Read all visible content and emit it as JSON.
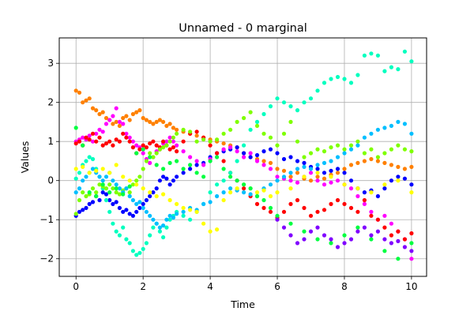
{
  "chart_data": {
    "type": "scatter",
    "title": "Unnamed - 0 marginal",
    "xlabel": "Time",
    "ylabel": "Values",
    "xlim": [
      -0.5,
      10.45
    ],
    "ylim": [
      -2.45,
      3.65
    ],
    "xticks": [
      0,
      2,
      4,
      6,
      8,
      10
    ],
    "yticks": [
      -2,
      -1,
      0,
      1,
      2,
      3
    ],
    "xtick_labels": [
      "0",
      "2",
      "4",
      "6",
      "8",
      "10"
    ],
    "ytick_labels": [
      "−2",
      "−1",
      "0",
      "1",
      "2",
      "3"
    ],
    "grid": true,
    "legend": "none",
    "series": [
      {
        "color": "#ff8000",
        "x": [
          0.0,
          0.1,
          0.2,
          0.3,
          0.4,
          0.5,
          0.6,
          0.7,
          0.8,
          0.9,
          1.0,
          1.1,
          1.2,
          1.3,
          1.4,
          1.5,
          1.6,
          1.7,
          1.8,
          1.9,
          2.0,
          2.1,
          2.2,
          2.3,
          2.4,
          2.5,
          2.6,
          2.7,
          2.8,
          2.9,
          3.0,
          3.2,
          3.4,
          3.6,
          3.8,
          4.0,
          4.2,
          4.4,
          4.6,
          4.8,
          5.0,
          5.2,
          5.4,
          5.6,
          5.8,
          6.0,
          6.2,
          6.4,
          6.6,
          6.8,
          7.0,
          7.2,
          7.4,
          7.6,
          7.8,
          8.0,
          8.2,
          8.4,
          8.6,
          8.8,
          9.0,
          9.2,
          9.4,
          9.6,
          9.8,
          10.0
        ],
        "y": [
          2.3,
          2.25,
          2.0,
          2.05,
          2.1,
          1.85,
          1.8,
          1.7,
          1.75,
          1.6,
          1.55,
          1.45,
          1.5,
          1.4,
          1.6,
          1.65,
          1.55,
          1.7,
          1.75,
          1.8,
          1.6,
          1.55,
          1.5,
          1.45,
          1.5,
          1.55,
          1.5,
          1.4,
          1.45,
          1.35,
          1.3,
          1.25,
          1.2,
          1.15,
          1.1,
          1.05,
          1.0,
          0.95,
          0.9,
          0.85,
          0.7,
          0.6,
          0.55,
          0.5,
          0.45,
          0.3,
          0.25,
          0.1,
          0.2,
          0.05,
          0.0,
          0.1,
          0.05,
          0.15,
          0.2,
          0.3,
          0.4,
          0.45,
          0.5,
          0.55,
          0.5,
          0.45,
          0.4,
          0.35,
          0.3,
          0.35
        ]
      },
      {
        "color": "#0000ff",
        "x": [
          0.0,
          0.1,
          0.2,
          0.3,
          0.4,
          0.5,
          0.6,
          0.7,
          0.8,
          0.9,
          1.0,
          1.1,
          1.2,
          1.3,
          1.4,
          1.5,
          1.6,
          1.7,
          1.8,
          1.9,
          2.0,
          2.1,
          2.2,
          2.3,
          2.4,
          2.5,
          2.6,
          2.7,
          2.8,
          2.9,
          3.0,
          3.2,
          3.4,
          3.6,
          3.8,
          4.0,
          4.2,
          4.4,
          4.6,
          4.8,
          5.0,
          5.2,
          5.4,
          5.6,
          5.8,
          6.0,
          6.2,
          6.4,
          6.6,
          6.8,
          7.0,
          7.2,
          7.4,
          7.6,
          7.8,
          8.0,
          8.2,
          8.4,
          8.6,
          8.8,
          9.0,
          9.2,
          9.4,
          9.6,
          9.8,
          10.0
        ],
        "y": [
          -0.9,
          -0.8,
          -0.75,
          -0.7,
          -0.6,
          -0.55,
          -0.4,
          -0.5,
          -0.3,
          -0.35,
          -0.5,
          -0.6,
          -0.55,
          -0.7,
          -0.8,
          -0.75,
          -0.85,
          -0.9,
          -0.8,
          -0.7,
          -0.6,
          -0.5,
          -0.4,
          -0.3,
          -0.2,
          0.0,
          0.1,
          0.05,
          -0.1,
          0.0,
          0.1,
          0.2,
          0.3,
          0.4,
          0.45,
          0.6,
          0.7,
          0.75,
          0.8,
          0.85,
          0.7,
          0.6,
          0.65,
          0.75,
          0.8,
          0.7,
          0.55,
          0.6,
          0.5,
          0.45,
          0.35,
          0.3,
          0.2,
          0.25,
          0.3,
          0.2,
          0.0,
          -0.2,
          -0.3,
          -0.25,
          -0.4,
          -0.2,
          0.0,
          0.1,
          0.05,
          -0.1
        ]
      },
      {
        "color": "#ff00ff",
        "x": [
          0.0,
          0.1,
          0.2,
          0.3,
          0.4,
          0.5,
          0.6,
          0.7,
          0.8,
          0.9,
          1.0,
          1.1,
          1.2,
          1.3,
          1.4,
          1.5,
          1.6,
          1.7,
          1.8,
          1.9,
          2.0,
          2.1,
          2.2,
          2.3,
          2.4,
          2.5,
          2.6,
          2.7,
          2.8,
          2.9,
          3.0,
          3.2,
          3.4,
          3.6,
          3.8,
          4.0,
          4.2,
          4.4,
          4.6,
          4.8,
          5.0,
          5.2,
          5.4,
          5.6,
          5.8,
          6.0,
          6.2,
          6.4,
          6.6,
          6.8,
          7.0,
          7.2,
          7.4,
          7.6,
          7.8,
          8.0,
          8.2,
          8.4,
          8.6,
          8.8,
          9.0,
          9.2,
          9.4,
          9.6,
          9.8,
          10.0
        ],
        "y": [
          1.0,
          1.05,
          1.1,
          1.05,
          1.15,
          1.0,
          1.2,
          1.3,
          1.25,
          1.45,
          1.55,
          1.65,
          1.85,
          1.5,
          1.45,
          1.2,
          1.1,
          1.0,
          0.9,
          0.85,
          0.7,
          0.55,
          0.45,
          0.6,
          0.75,
          0.8,
          0.95,
          1.0,
          1.1,
          1.0,
          0.9,
          0.75,
          0.6,
          0.5,
          0.4,
          0.55,
          0.7,
          0.8,
          0.85,
          0.75,
          0.6,
          0.7,
          0.5,
          0.4,
          0.3,
          0.1,
          0.05,
          0.0,
          -0.05,
          0.1,
          0.2,
          0.0,
          -0.1,
          -0.05,
          0.0,
          -0.1,
          -0.2,
          -0.4,
          -0.6,
          -0.8,
          -1.0,
          -0.9,
          -1.1,
          -1.3,
          -1.5,
          -2.0
        ]
      },
      {
        "color": "#ff0000",
        "x": [
          0.0,
          0.1,
          0.2,
          0.3,
          0.4,
          0.5,
          0.6,
          0.7,
          0.8,
          0.9,
          1.0,
          1.1,
          1.2,
          1.3,
          1.4,
          1.5,
          1.6,
          1.7,
          1.8,
          1.9,
          2.0,
          2.1,
          2.2,
          2.3,
          2.4,
          2.5,
          2.6,
          2.7,
          2.8,
          2.9,
          3.0,
          3.2,
          3.4,
          3.6,
          3.8,
          4.0,
          4.2,
          4.4,
          4.6,
          4.8,
          5.0,
          5.2,
          5.4,
          5.6,
          5.8,
          6.0,
          6.2,
          6.4,
          6.6,
          6.8,
          7.0,
          7.2,
          7.4,
          7.6,
          7.8,
          8.0,
          8.2,
          8.4,
          8.6,
          8.8,
          9.0,
          9.2,
          9.4,
          9.6,
          9.8,
          10.0
        ],
        "y": [
          0.95,
          1.0,
          0.9,
          1.1,
          1.05,
          1.2,
          1.0,
          1.1,
          0.9,
          0.95,
          1.0,
          0.9,
          1.05,
          1.0,
          1.2,
          1.1,
          1.0,
          0.85,
          0.7,
          0.8,
          0.9,
          0.85,
          0.95,
          1.0,
          0.9,
          0.85,
          1.0,
          0.9,
          0.8,
          0.85,
          0.75,
          1.0,
          1.2,
          1.25,
          1.1,
          0.9,
          0.7,
          0.5,
          0.2,
          0.0,
          -0.2,
          -0.4,
          -0.6,
          -0.7,
          -0.8,
          -0.95,
          -0.8,
          -0.6,
          -0.5,
          -0.7,
          -0.9,
          -0.8,
          -0.75,
          -0.6,
          -0.5,
          -0.6,
          -0.7,
          -0.8,
          -0.5,
          -0.9,
          -1.0,
          -1.2,
          -1.4,
          -1.3,
          -1.5,
          -1.35
        ]
      },
      {
        "color": "#00ffbf",
        "x": [
          0.0,
          0.1,
          0.2,
          0.3,
          0.4,
          0.5,
          0.6,
          0.7,
          0.8,
          0.9,
          1.0,
          1.1,
          1.2,
          1.3,
          1.4,
          1.5,
          1.6,
          1.7,
          1.8,
          1.9,
          2.0,
          2.1,
          2.2,
          2.3,
          2.4,
          2.5,
          2.6,
          2.7,
          2.8,
          2.9,
          3.0,
          3.2,
          3.4,
          3.6,
          3.8,
          4.0,
          4.2,
          4.4,
          4.6,
          4.8,
          5.0,
          5.2,
          5.4,
          5.6,
          5.8,
          6.0,
          6.2,
          6.4,
          6.6,
          6.8,
          7.0,
          7.2,
          7.4,
          7.6,
          7.8,
          8.0,
          8.2,
          8.4,
          8.6,
          8.8,
          9.0,
          9.2,
          9.4,
          9.6,
          9.8,
          10.0
        ],
        "y": [
          0.05,
          0.2,
          0.4,
          0.5,
          0.6,
          0.55,
          0.3,
          0.1,
          -0.2,
          -0.5,
          -0.8,
          -1.1,
          -1.3,
          -1.4,
          -1.2,
          -1.5,
          -1.6,
          -1.8,
          -1.9,
          -1.85,
          -1.75,
          -1.6,
          -1.4,
          -1.2,
          -1.1,
          -1.3,
          -1.45,
          -1.2,
          -1.0,
          -0.9,
          -0.8,
          -0.9,
          -1.0,
          -0.8,
          -0.6,
          -0.3,
          -0.1,
          0.0,
          0.2,
          0.5,
          0.9,
          1.3,
          1.5,
          1.7,
          1.9,
          2.1,
          2.0,
          1.9,
          1.8,
          2.0,
          2.1,
          2.3,
          2.5,
          2.6,
          2.65,
          2.6,
          2.5,
          2.7,
          3.2,
          3.25,
          3.2,
          2.8,
          2.9,
          2.85,
          3.3,
          3.05
        ]
      },
      {
        "color": "#7fff00",
        "x": [
          0.0,
          0.1,
          0.2,
          0.3,
          0.4,
          0.5,
          0.6,
          0.7,
          0.8,
          0.9,
          1.0,
          1.1,
          1.2,
          1.3,
          1.4,
          1.5,
          1.6,
          1.7,
          1.8,
          1.9,
          2.0,
          2.1,
          2.2,
          2.3,
          2.4,
          2.5,
          2.6,
          2.7,
          2.8,
          2.9,
          3.0,
          3.2,
          3.4,
          3.6,
          3.8,
          4.0,
          4.2,
          4.4,
          4.6,
          4.8,
          5.0,
          5.2,
          5.4,
          5.6,
          5.8,
          6.0,
          6.2,
          6.4,
          6.6,
          6.8,
          7.0,
          7.2,
          7.4,
          7.6,
          7.8,
          8.0,
          8.2,
          8.4,
          8.6,
          8.8,
          9.0,
          9.2,
          9.4,
          9.6,
          9.8,
          10.0
        ],
        "y": [
          -0.85,
          -0.5,
          -0.3,
          -0.4,
          -0.35,
          -0.2,
          -0.3,
          -0.1,
          -0.15,
          -0.2,
          -0.1,
          -0.2,
          -0.3,
          -0.35,
          -0.25,
          -0.2,
          -0.3,
          -0.1,
          0.0,
          0.1,
          0.3,
          0.5,
          0.7,
          0.6,
          0.7,
          0.8,
          0.85,
          0.9,
          1.0,
          1.1,
          1.2,
          1.3,
          1.25,
          1.0,
          1.05,
          1.0,
          1.05,
          1.2,
          1.3,
          1.5,
          1.6,
          1.75,
          1.4,
          1.2,
          1.1,
          0.9,
          1.2,
          1.5,
          1.0,
          0.6,
          0.7,
          0.8,
          0.75,
          0.85,
          0.9,
          0.8,
          0.9,
          1.0,
          0.7,
          0.8,
          0.6,
          0.7,
          0.8,
          0.9,
          0.8,
          0.75
        ]
      },
      {
        "color": "#00bfff",
        "x": [
          0.0,
          0.1,
          0.2,
          0.3,
          0.4,
          0.5,
          0.6,
          0.7,
          0.8,
          0.9,
          1.0,
          1.1,
          1.2,
          1.3,
          1.4,
          1.5,
          1.6,
          1.7,
          1.8,
          1.9,
          2.0,
          2.1,
          2.2,
          2.3,
          2.4,
          2.5,
          2.6,
          2.7,
          2.8,
          2.9,
          3.0,
          3.2,
          3.4,
          3.6,
          3.8,
          4.0,
          4.2,
          4.4,
          4.6,
          4.8,
          5.0,
          5.2,
          5.4,
          5.6,
          5.8,
          6.0,
          6.2,
          6.4,
          6.6,
          6.8,
          7.0,
          7.2,
          7.4,
          7.6,
          7.8,
          8.0,
          8.2,
          8.4,
          8.6,
          8.8,
          9.0,
          9.2,
          9.4,
          9.6,
          9.8,
          10.0
        ],
        "y": [
          -0.3,
          -0.2,
          0.0,
          0.1,
          0.2,
          0.3,
          0.2,
          0.1,
          0.0,
          0.1,
          0.2,
          0.0,
          -0.1,
          -0.2,
          -0.3,
          -0.2,
          -0.4,
          -0.5,
          -0.6,
          -0.55,
          -0.7,
          -0.8,
          -0.9,
          -1.0,
          -1.1,
          -1.2,
          -1.15,
          -1.0,
          -0.9,
          -0.95,
          -0.85,
          -0.8,
          -0.7,
          -0.75,
          -0.6,
          -0.55,
          -0.4,
          -0.3,
          -0.2,
          -0.25,
          -0.3,
          -0.35,
          -0.4,
          -0.2,
          -0.1,
          0.0,
          0.1,
          0.2,
          0.3,
          0.35,
          0.3,
          0.4,
          0.45,
          0.5,
          0.6,
          0.7,
          0.8,
          0.9,
          1.1,
          1.2,
          1.3,
          1.35,
          1.4,
          1.5,
          1.45,
          1.2
        ]
      },
      {
        "color": "#ffff00",
        "x": [
          0.0,
          0.2,
          0.4,
          0.6,
          0.8,
          1.0,
          1.2,
          1.4,
          1.6,
          1.8,
          2.0,
          2.2,
          2.4,
          2.6,
          2.8,
          3.0,
          3.2,
          3.4,
          3.6,
          3.8,
          4.0,
          4.2,
          4.4,
          4.6,
          4.8,
          5.0,
          5.2,
          5.4,
          5.6,
          5.8,
          6.0,
          6.4,
          6.8,
          7.2,
          7.6,
          8.0,
          8.4,
          8.8,
          9.2,
          9.6,
          10.0
        ],
        "y": [
          0.3,
          0.35,
          0.2,
          0.25,
          0.3,
          0.2,
          0.4,
          0.1,
          0.0,
          -0.1,
          -0.2,
          -0.3,
          -0.4,
          -0.35,
          -0.5,
          -0.6,
          -0.7,
          -0.75,
          -0.8,
          -1.1,
          -1.3,
          -1.25,
          -0.5,
          -0.3,
          -0.2,
          -0.1,
          -0.2,
          -0.3,
          -0.25,
          -0.4,
          -0.3,
          -0.2,
          0.1,
          0.2,
          0.1,
          -0.1,
          -0.2,
          -0.3,
          -0.1,
          0.0,
          -0.3
        ]
      },
      {
        "color": "#00ff40",
        "x": [
          0.0,
          0.2,
          0.4,
          0.6,
          0.8,
          1.0,
          1.2,
          1.4,
          1.6,
          1.8,
          2.0,
          2.2,
          2.4,
          2.6,
          2.8,
          3.0,
          3.2,
          3.4,
          3.6,
          3.8,
          4.0,
          4.2,
          4.4,
          4.6,
          4.8,
          5.0,
          5.2,
          5.4,
          5.6,
          5.8,
          6.0,
          6.4,
          6.8,
          7.2,
          7.6,
          8.0,
          8.4,
          8.8,
          9.2,
          9.6,
          10.0
        ],
        "y": [
          1.35,
          0.9,
          -0.3,
          -0.4,
          -0.1,
          -0.3,
          -0.2,
          -0.35,
          -0.15,
          0.7,
          0.8,
          0.6,
          0.4,
          0.3,
          0.45,
          0.5,
          0.3,
          0.4,
          0.2,
          0.1,
          0.5,
          0.6,
          0.3,
          0.1,
          0.0,
          -0.1,
          -0.2,
          -0.4,
          -0.5,
          -0.7,
          -0.9,
          -1.1,
          -1.3,
          -1.5,
          -1.6,
          -1.4,
          -1.2,
          -1.5,
          -1.8,
          -2.0,
          -1.6
        ]
      },
      {
        "color": "#8000ff",
        "x": [
          6.0,
          6.2,
          6.4,
          6.6,
          6.8,
          7.0,
          7.2,
          7.4,
          7.6,
          7.8,
          8.0,
          8.2,
          8.4,
          8.6,
          8.8,
          9.0,
          9.2,
          9.4,
          9.6,
          9.8,
          10.0
        ],
        "y": [
          -1.0,
          -1.2,
          -1.4,
          -1.6,
          -1.5,
          -1.3,
          -1.2,
          -1.4,
          -1.5,
          -1.7,
          -1.6,
          -1.5,
          -1.3,
          -1.2,
          -1.4,
          -1.3,
          -1.5,
          -1.6,
          -1.55,
          -1.7,
          -1.8
        ]
      }
    ]
  }
}
